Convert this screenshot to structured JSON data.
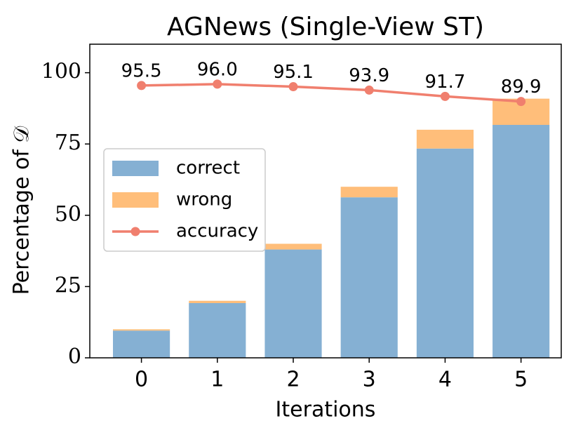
{
  "chart_data": {
    "type": "stacked-bar-line",
    "title": "AGNews (Single-View ST)",
    "x_label": "Iterations",
    "y_label": "Percentage of 𝒟",
    "x": [
      0,
      1,
      2,
      3,
      4,
      5
    ],
    "xlim": [
      -0.68,
      5.53
    ],
    "xticks": [
      0,
      1,
      2,
      3,
      4,
      5
    ],
    "ylim": [
      0,
      110
    ],
    "yticks": [
      0,
      25,
      50,
      75,
      100
    ],
    "series": [
      {
        "name": "correct",
        "type": "bar",
        "color": "#85b0d3",
        "values": [
          9.55,
          19.2,
          38.0,
          56.3,
          73.4,
          81.7
        ]
      },
      {
        "name": "wrong",
        "type": "bar",
        "color": "#ffbe7a",
        "values": [
          0.45,
          0.8,
          2.0,
          3.7,
          6.6,
          9.2
        ]
      },
      {
        "name": "accuracy",
        "type": "line",
        "color": "#f07f6e",
        "values": [
          95.5,
          96.0,
          95.1,
          93.9,
          91.7,
          89.9
        ],
        "value_labels": [
          "95.5",
          "96.0",
          "95.1",
          "93.9",
          "91.7",
          "89.9"
        ]
      }
    ],
    "legend": "center left",
    "grid": false
  }
}
